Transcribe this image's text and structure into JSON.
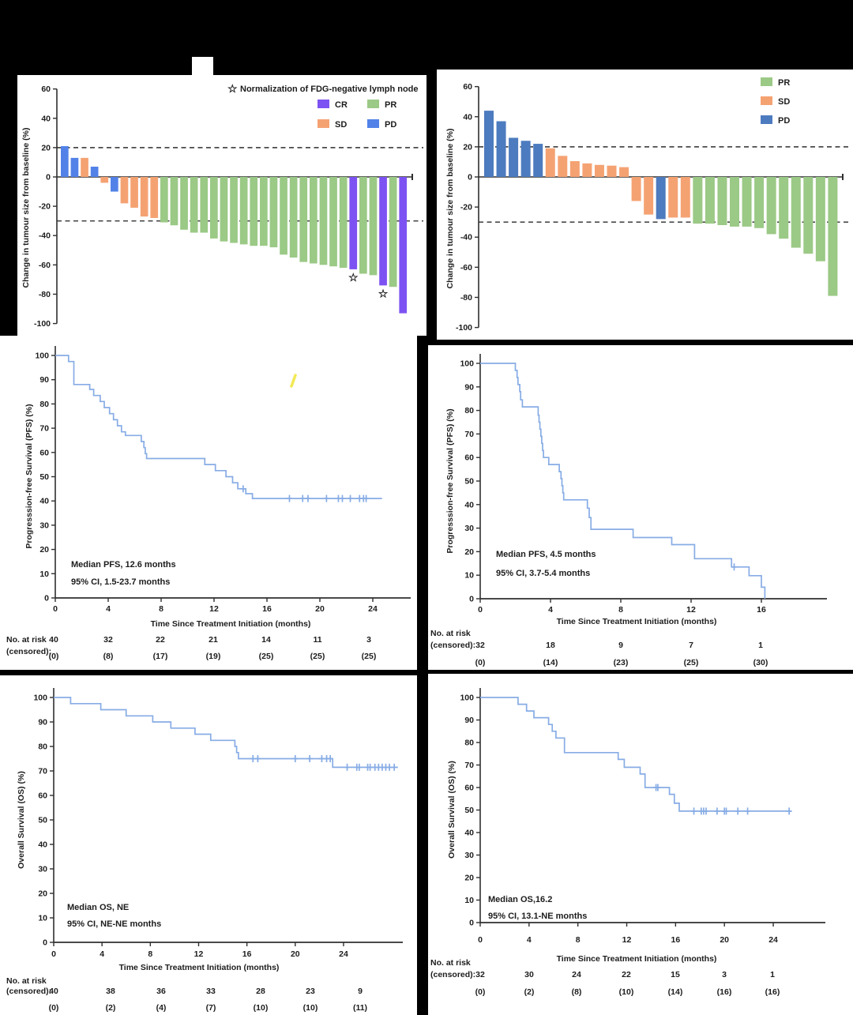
{
  "figure": {
    "background": "#000000",
    "axis_color": "#2f2f2f",
    "dash_color": "#4a4a4a",
    "km_line_color": "#87ace5",
    "pen_mark_color": "#f2e957"
  },
  "chart_data": [
    {
      "id": "waterfall-left",
      "type": "bar",
      "ylabel": "Change in tumour size from baseline (%)",
      "ylim": [
        -100,
        60
      ],
      "yticks": [
        60,
        40,
        20,
        0,
        -20,
        -40,
        -60,
        -80,
        -100
      ],
      "ref_lines": [
        20,
        -30
      ],
      "legend_note": "Normalization of FDG-negative lymph node",
      "legend_note_symbol": "☆",
      "legend": [
        {
          "label": "CR",
          "key": "CR"
        },
        {
          "label": "SD",
          "key": "SD"
        },
        {
          "label": "PR",
          "key": "PR"
        },
        {
          "label": "PD",
          "key": "PD"
        }
      ],
      "colors": {
        "CR": "#7d52f2",
        "SD": "#f5a273",
        "PR": "#9bc986",
        "PD": "#5282e8"
      },
      "bars": [
        {
          "value": 21,
          "response": "PD"
        },
        {
          "value": 13,
          "response": "PD"
        },
        {
          "value": 13,
          "response": "SD"
        },
        {
          "value": 7,
          "response": "PD"
        },
        {
          "value": -4,
          "response": "SD"
        },
        {
          "value": -10,
          "response": "PD"
        },
        {
          "value": -18,
          "response": "SD"
        },
        {
          "value": -21,
          "response": "SD"
        },
        {
          "value": -27,
          "response": "SD"
        },
        {
          "value": -28,
          "response": "SD"
        },
        {
          "value": -31,
          "response": "PR"
        },
        {
          "value": -33,
          "response": "PR"
        },
        {
          "value": -36,
          "response": "PR"
        },
        {
          "value": -38,
          "response": "PR"
        },
        {
          "value": -38,
          "response": "PR"
        },
        {
          "value": -42,
          "response": "PR"
        },
        {
          "value": -44,
          "response": "PR"
        },
        {
          "value": -45,
          "response": "PR"
        },
        {
          "value": -46,
          "response": "PR"
        },
        {
          "value": -47,
          "response": "PR"
        },
        {
          "value": -47,
          "response": "PR"
        },
        {
          "value": -48,
          "response": "PR"
        },
        {
          "value": -53,
          "response": "PR"
        },
        {
          "value": -55,
          "response": "PR"
        },
        {
          "value": -58,
          "response": "PR"
        },
        {
          "value": -59,
          "response": "PR"
        },
        {
          "value": -60,
          "response": "PR"
        },
        {
          "value": -61,
          "response": "PR"
        },
        {
          "value": -62,
          "response": "PR"
        },
        {
          "value": -63,
          "response": "CR",
          "star": true
        },
        {
          "value": -66,
          "response": "PR"
        },
        {
          "value": -67,
          "response": "PR"
        },
        {
          "value": -74,
          "response": "CR",
          "star": true
        },
        {
          "value": -75,
          "response": "PR"
        },
        {
          "value": -93,
          "response": "CR"
        }
      ]
    },
    {
      "id": "waterfall-right",
      "type": "bar",
      "ylabel": "Change in tumour size from baseline (%)",
      "ylim": [
        -100,
        60
      ],
      "yticks": [
        60,
        40,
        20,
        0,
        -20,
        -40,
        -60,
        -80,
        -100
      ],
      "ref_lines": [
        20,
        -30
      ],
      "legend": [
        {
          "label": "PR",
          "key": "PR"
        },
        {
          "label": "SD",
          "key": "SD"
        },
        {
          "label": "PD",
          "key": "PD"
        }
      ],
      "colors": {
        "SD": "#f5a273",
        "PR": "#9bc986",
        "PD": "#4d7bbf"
      },
      "bars": [
        {
          "value": 44,
          "response": "PD"
        },
        {
          "value": 37,
          "response": "PD"
        },
        {
          "value": 26,
          "response": "PD"
        },
        {
          "value": 24,
          "response": "PD"
        },
        {
          "value": 22,
          "response": "PD"
        },
        {
          "value": 19,
          "response": "SD"
        },
        {
          "value": 14,
          "response": "SD"
        },
        {
          "value": 10.5,
          "response": "SD"
        },
        {
          "value": 9,
          "response": "SD"
        },
        {
          "value": 8,
          "response": "SD"
        },
        {
          "value": 7.5,
          "response": "SD"
        },
        {
          "value": 6.5,
          "response": "SD"
        },
        {
          "value": -16,
          "response": "SD"
        },
        {
          "value": -25,
          "response": "SD"
        },
        {
          "value": -28,
          "response": "PD"
        },
        {
          "value": -27,
          "response": "SD"
        },
        {
          "value": -27,
          "response": "SD"
        },
        {
          "value": -31,
          "response": "PR"
        },
        {
          "value": -31,
          "response": "PR"
        },
        {
          "value": -32,
          "response": "PR"
        },
        {
          "value": -33,
          "response": "PR"
        },
        {
          "value": -33,
          "response": "PR"
        },
        {
          "value": -34,
          "response": "PR"
        },
        {
          "value": -38,
          "response": "PR"
        },
        {
          "value": -41,
          "response": "PR"
        },
        {
          "value": -47,
          "response": "PR"
        },
        {
          "value": -51,
          "response": "PR"
        },
        {
          "value": -56,
          "response": "PR"
        },
        {
          "value": -79,
          "response": "PR"
        }
      ]
    },
    {
      "id": "pfs-left",
      "type": "line",
      "ylabel": "Progresssion-free Survival (PFS) (%)",
      "xlabel": "Time Since Treatment Initiation (months)",
      "yticks": [
        100,
        90,
        80,
        70,
        60,
        50,
        40,
        30,
        20,
        10,
        0
      ],
      "xticks": [
        0,
        4,
        8,
        12,
        16,
        20,
        24
      ],
      "curve_end": 24.7,
      "steps": [
        [
          1.0,
          97.5
        ],
        [
          1.4,
          88
        ],
        [
          2.6,
          86
        ],
        [
          2.9,
          83.5
        ],
        [
          3.4,
          81
        ],
        [
          3.7,
          78.5
        ],
        [
          4.1,
          76
        ],
        [
          4.4,
          73.5
        ],
        [
          4.7,
          71
        ],
        [
          5.0,
          68.5
        ],
        [
          5.3,
          67
        ],
        [
          6.5,
          64.5
        ],
        [
          6.7,
          62
        ],
        [
          6.8,
          59.5
        ],
        [
          6.9,
          57.5
        ],
        [
          11.3,
          55
        ],
        [
          12.1,
          52.5
        ],
        [
          12.9,
          50
        ],
        [
          13.4,
          47.5
        ],
        [
          13.8,
          45
        ],
        [
          14.4,
          43
        ],
        [
          14.9,
          41
        ]
      ],
      "censors": [
        [
          14.2,
          45
        ],
        [
          17.7,
          41
        ],
        [
          18.7,
          41
        ],
        [
          19.1,
          41
        ],
        [
          20.5,
          41
        ],
        [
          21.4,
          41
        ],
        [
          21.7,
          41
        ],
        [
          22.3,
          41
        ],
        [
          23.0,
          41
        ],
        [
          23.3,
          41
        ],
        [
          23.5,
          41
        ]
      ],
      "annotations": [
        "Median PFS, 12.6 months",
        "95% CI, 1.5-23.7 months"
      ],
      "risk_table": {
        "label1": "No. at risk",
        "label2": "(censored):",
        "counts": [
          "40",
          "32",
          "22",
          "21",
          "14",
          "11",
          "3"
        ],
        "censored": [
          "(0)",
          "(8)",
          "(17)",
          "(19)",
          "(25)",
          "(25)",
          "(25)"
        ]
      }
    },
    {
      "id": "pfs-right",
      "type": "line",
      "ylabel": "Progresssion-free Survival (PFS) (%)",
      "xlabel": "Time Since Treatment Initiation (months)",
      "yticks": [
        100,
        90,
        80,
        70,
        60,
        50,
        40,
        30,
        20,
        10,
        0
      ],
      "xticks": [
        0,
        4,
        8,
        12,
        16
      ],
      "curve_end": 16.2,
      "steps": [
        [
          2.0,
          97
        ],
        [
          2.1,
          94
        ],
        [
          2.15,
          91
        ],
        [
          2.25,
          88
        ],
        [
          2.3,
          84.5
        ],
        [
          2.4,
          81.5
        ],
        [
          3.3,
          78
        ],
        [
          3.35,
          75
        ],
        [
          3.4,
          72
        ],
        [
          3.45,
          69
        ],
        [
          3.5,
          66
        ],
        [
          3.55,
          63
        ],
        [
          3.6,
          60
        ],
        [
          3.9,
          57
        ],
        [
          4.5,
          54
        ],
        [
          4.6,
          51
        ],
        [
          4.65,
          48
        ],
        [
          4.7,
          45
        ],
        [
          4.75,
          42
        ],
        [
          6.1,
          38.5
        ],
        [
          6.2,
          34.5
        ],
        [
          6.3,
          29.5
        ],
        [
          8.7,
          26
        ],
        [
          10.9,
          23
        ],
        [
          12.2,
          17
        ],
        [
          14.3,
          13.5
        ],
        [
          15.3,
          9.8
        ],
        [
          16.0,
          4.9
        ],
        [
          16.2,
          0
        ]
      ],
      "censors": [
        [
          14.45,
          13.5
        ]
      ],
      "annotations": [
        "Median PFS, 4.5 months",
        "95% CI, 3.7-5.4 months"
      ],
      "risk_table": {
        "label1": "No. at risk",
        "label2": "(censored):",
        "counts": [
          "32",
          "18",
          "9",
          "7",
          "1"
        ],
        "censored": [
          "(0)",
          "(14)",
          "(23)",
          "(25)",
          "(30)"
        ]
      }
    },
    {
      "id": "os-left",
      "type": "line",
      "ylabel": "Overall Survival (OS) (%)",
      "xlabel": "Time Since Treatment Initiation (months)",
      "yticks": [
        100,
        90,
        80,
        70,
        60,
        50,
        40,
        30,
        20,
        10,
        0
      ],
      "xticks": [
        0,
        4,
        8,
        12,
        16,
        20,
        24
      ],
      "curve_end": 28.5,
      "steps": [
        [
          1.4,
          97.5
        ],
        [
          3.9,
          95
        ],
        [
          6.0,
          92.5
        ],
        [
          8.2,
          90
        ],
        [
          9.7,
          87.5
        ],
        [
          11.7,
          85
        ],
        [
          13.0,
          82.5
        ],
        [
          15.0,
          80
        ],
        [
          15.15,
          77.5
        ],
        [
          15.3,
          75
        ],
        [
          23.1,
          71.5
        ]
      ],
      "censors": [
        [
          16.5,
          75
        ],
        [
          16.9,
          75
        ],
        [
          20.0,
          75
        ],
        [
          21.2,
          75
        ],
        [
          22.2,
          75
        ],
        [
          22.6,
          75
        ],
        [
          22.9,
          75
        ],
        [
          24.3,
          71.5
        ],
        [
          25.1,
          71.5
        ],
        [
          25.3,
          71.5
        ],
        [
          26.0,
          71.5
        ],
        [
          26.2,
          71.5
        ],
        [
          26.6,
          71.5
        ],
        [
          26.9,
          71.5
        ],
        [
          27.2,
          71.5
        ],
        [
          27.5,
          71.5
        ],
        [
          27.8,
          71.5
        ],
        [
          28.2,
          71.5
        ]
      ],
      "annotations": [
        "Median OS, NE",
        "95% CI, NE-NE months"
      ],
      "risk_table": {
        "label1": "No. at risk",
        "label2": "(censored):",
        "counts": [
          "40",
          "38",
          "36",
          "33",
          "28",
          "23",
          "9"
        ],
        "censored": [
          "(0)",
          "(2)",
          "(4)",
          "(7)",
          "(10)",
          "(10)",
          "(11)"
        ]
      }
    },
    {
      "id": "os-right",
      "type": "line",
      "ylabel": "Overall Survival (OS) (%)",
      "xlabel": "Time Since Treatment Initiation (months)",
      "yticks": [
        100,
        90,
        80,
        70,
        60,
        50,
        40,
        30,
        20,
        10,
        0
      ],
      "xticks": [
        0,
        4,
        8,
        12,
        16,
        20,
        24
      ],
      "curve_end": 25.5,
      "steps": [
        [
          3.1,
          97
        ],
        [
          3.8,
          94
        ],
        [
          4.4,
          91
        ],
        [
          5.6,
          88
        ],
        [
          5.9,
          85
        ],
        [
          6.2,
          82
        ],
        [
          6.9,
          75.5
        ],
        [
          11.3,
          72.5
        ],
        [
          11.8,
          69
        ],
        [
          13.1,
          66
        ],
        [
          13.5,
          60
        ],
        [
          15.5,
          57
        ],
        [
          15.9,
          53
        ],
        [
          16.3,
          49.5
        ]
      ],
      "censors": [
        [
          14.4,
          60
        ],
        [
          14.55,
          60
        ],
        [
          17.5,
          49.5
        ],
        [
          18.1,
          49.5
        ],
        [
          18.3,
          49.5
        ],
        [
          18.5,
          49.5
        ],
        [
          19.4,
          49.5
        ],
        [
          20.0,
          49.5
        ],
        [
          20.15,
          49.5
        ],
        [
          21.1,
          49.5
        ],
        [
          21.9,
          49.5
        ],
        [
          25.3,
          49.5
        ]
      ],
      "annotations": [
        "Median OS,16.2",
        "95% CI, 13.1-NE months"
      ],
      "risk_table": {
        "label1": "No. at risk",
        "label2": "(censored):",
        "counts": [
          "32",
          "30",
          "24",
          "22",
          "15",
          "3",
          "1"
        ],
        "censored": [
          "(0)",
          "(2)",
          "(8)",
          "(10)",
          "(14)",
          "(16)",
          "(16)"
        ]
      }
    }
  ]
}
